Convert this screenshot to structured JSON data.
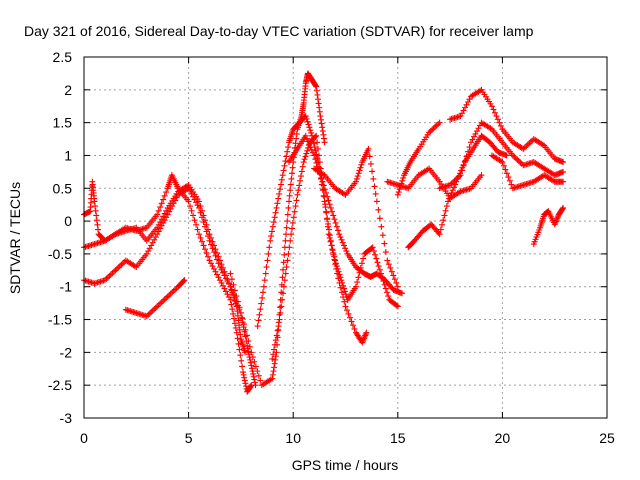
{
  "chart_data": {
    "type": "scatter",
    "title": "Day 321 of 2016, Sidereal Day-to-day VTEC variation (SDTVAR) for receiver lamp",
    "xlabel": "GPS time / hours",
    "ylabel": "SDTVAR / TECUs",
    "xlim": [
      0,
      25
    ],
    "ylim": [
      -3,
      2.5
    ],
    "x_ticks": [
      "0",
      "5",
      "10",
      "15",
      "20",
      "25"
    ],
    "y_ticks": [
      "-3",
      "-2.5",
      "-2",
      "-1.5",
      "-1",
      "-0.5",
      "0",
      "0.5",
      "1",
      "1.5",
      "2",
      "2.5"
    ],
    "grid": true,
    "marker": "+",
    "color": "#ff0000",
    "series": [
      {
        "x": [
          0.0,
          0.3,
          0.4,
          0.5,
          0.7,
          1.0,
          1.5,
          2.0,
          2.5,
          3.0,
          3.5,
          4.0,
          4.2,
          4.5,
          5.0,
          5.5,
          6.0,
          6.5,
          7.0,
          7.3,
          7.6,
          7.8,
          8.0
        ],
        "y": [
          0.1,
          0.15,
          0.6,
          0.3,
          -0.2,
          -0.3,
          -0.2,
          -0.1,
          -0.15,
          -0.1,
          0.1,
          0.5,
          0.7,
          0.5,
          0.3,
          -0.2,
          -0.6,
          -0.9,
          -1.2,
          -1.7,
          -2.3,
          -2.6,
          -2.5
        ]
      },
      {
        "x": [
          0.0,
          0.5,
          1.0,
          1.5,
          2.0,
          2.5,
          3.0,
          3.5,
          4.0,
          4.5,
          5.0,
          5.5,
          6.0,
          6.5,
          7.0,
          7.3,
          7.5,
          7.7
        ],
        "y": [
          -0.4,
          -0.35,
          -0.3,
          -0.2,
          -0.15,
          -0.1,
          -0.3,
          -0.1,
          0.2,
          0.45,
          0.55,
          0.3,
          -0.2,
          -0.6,
          -1.0,
          -1.3,
          -1.8,
          -2.0
        ]
      },
      {
        "x": [
          0.0,
          0.5,
          1.0,
          1.5,
          2.0,
          2.5,
          3.0,
          3.5,
          4.0,
          4.5,
          5.0,
          5.5,
          6.0,
          6.5,
          7.0,
          7.5,
          7.8,
          8.0,
          8.2
        ],
        "y": [
          -0.9,
          -0.95,
          -0.9,
          -0.75,
          -0.6,
          -0.7,
          -0.5,
          -0.2,
          0.1,
          0.4,
          0.5,
          0.2,
          -0.3,
          -0.7,
          -1.0,
          -1.4,
          -1.9,
          -2.2,
          -2.5
        ]
      },
      {
        "x": [
          2.0,
          2.5,
          3.0,
          3.5,
          4.0,
          4.5,
          4.8
        ],
        "y": [
          -1.35,
          -1.4,
          -1.45,
          -1.3,
          -1.15,
          -1.0,
          -0.9
        ]
      },
      {
        "x": [
          7.0,
          7.5,
          8.0,
          8.5,
          9.0,
          9.2,
          9.4,
          9.6,
          9.8,
          10.0,
          10.2,
          10.4,
          10.5,
          10.6,
          10.7,
          10.9,
          11.1,
          11.3,
          11.5
        ],
        "y": [
          -0.8,
          -1.4,
          -2.0,
          -2.5,
          -2.4,
          -2.0,
          -1.2,
          -0.4,
          0.3,
          0.9,
          1.4,
          1.6,
          1.8,
          2.1,
          2.25,
          2.15,
          2.05,
          1.6,
          1.2
        ]
      },
      {
        "x": [
          8.3,
          8.6,
          8.9,
          9.2,
          9.5,
          9.8,
          10.0,
          10.3,
          10.6,
          10.9,
          11.2,
          11.5,
          11.8,
          12.1,
          12.5,
          13.0,
          13.3,
          13.5
        ],
        "y": [
          -1.6,
          -1.0,
          -0.3,
          0.2,
          0.7,
          1.2,
          1.4,
          1.5,
          1.6,
          1.3,
          0.9,
          0.3,
          -0.3,
          -0.8,
          -1.3,
          -1.7,
          -1.85,
          -1.7
        ]
      },
      {
        "x": [
          9.0,
          9.3,
          9.6,
          9.9,
          10.2,
          10.5,
          10.8,
          11.1,
          11.4,
          11.7,
          12.0,
          12.3,
          12.6,
          13.0,
          13.4,
          13.8,
          14.2,
          14.6,
          15.0
        ],
        "y": [
          -2.1,
          -1.6,
          -0.9,
          -0.2,
          0.4,
          0.9,
          1.2,
          1.3,
          0.6,
          -0.2,
          -0.6,
          -0.9,
          -1.2,
          -1.0,
          -0.5,
          -0.4,
          -0.8,
          -1.2,
          -1.3
        ]
      },
      {
        "x": [
          9.8,
          10.2,
          10.6,
          11.0,
          11.4,
          11.8,
          12.2,
          12.6,
          13.0,
          13.4,
          13.7,
          14.0,
          14.4,
          14.8,
          15.2
        ],
        "y": [
          0.9,
          1.1,
          1.3,
          1.0,
          0.6,
          0.2,
          -0.2,
          -0.5,
          -0.7,
          -0.8,
          -0.85,
          -0.8,
          -0.9,
          -1.05,
          -1.1
        ]
      },
      {
        "x": [
          11.0,
          11.5,
          12.0,
          12.5,
          13.0,
          13.3,
          13.6,
          14.0,
          14.5,
          15.0
        ],
        "y": [
          0.8,
          0.7,
          0.5,
          0.4,
          0.6,
          0.9,
          1.1,
          0.3,
          -0.6,
          -1.0
        ]
      },
      {
        "x": [
          14.5,
          15.0,
          15.5,
          16.0,
          16.5,
          17.0,
          17.5,
          18.0,
          18.5,
          19.0
        ],
        "y": [
          0.6,
          0.55,
          0.5,
          0.7,
          0.8,
          0.6,
          0.35,
          0.45,
          0.5,
          0.7
        ]
      },
      {
        "x": [
          15.0,
          15.3,
          15.6,
          16.0,
          16.5,
          17.0
        ],
        "y": [
          0.4,
          0.7,
          0.9,
          1.1,
          1.35,
          1.5
        ]
      },
      {
        "x": [
          15.5,
          15.8,
          16.2,
          16.6,
          17.0,
          17.4,
          17.8,
          18.2,
          18.6,
          19.0,
          19.4,
          19.8,
          20.2
        ],
        "y": [
          -0.4,
          -0.3,
          -0.15,
          -0.05,
          -0.2,
          0.3,
          0.6,
          0.9,
          1.1,
          1.3,
          1.2,
          1.05,
          1.0
        ]
      },
      {
        "x": [
          17.5,
          18.0,
          18.5,
          19.0,
          19.5,
          20.0,
          20.5,
          21.0,
          21.5,
          22.0,
          22.5,
          22.9
        ],
        "y": [
          1.55,
          1.6,
          1.9,
          2.0,
          1.75,
          1.4,
          1.2,
          1.1,
          1.25,
          1.15,
          0.95,
          0.9
        ]
      },
      {
        "x": [
          17.0,
          17.5,
          18.0,
          18.5,
          19.0,
          19.5,
          20.0,
          20.5,
          21.0,
          21.5,
          22.0,
          22.5,
          22.9
        ],
        "y": [
          0.5,
          0.55,
          0.7,
          1.2,
          1.5,
          1.4,
          1.2,
          1.0,
          0.85,
          0.9,
          0.8,
          0.7,
          0.75
        ]
      },
      {
        "x": [
          19.5,
          20.0,
          20.5,
          21.0,
          21.5,
          22.0,
          22.5,
          22.9
        ],
        "y": [
          1.0,
          0.9,
          0.5,
          0.55,
          0.6,
          0.7,
          0.6,
          0.6
        ]
      },
      {
        "x": [
          21.5,
          21.8,
          22.0,
          22.2,
          22.5,
          22.7,
          22.9
        ],
        "y": [
          -0.35,
          -0.1,
          0.1,
          0.15,
          -0.05,
          0.1,
          0.2
        ]
      }
    ]
  }
}
